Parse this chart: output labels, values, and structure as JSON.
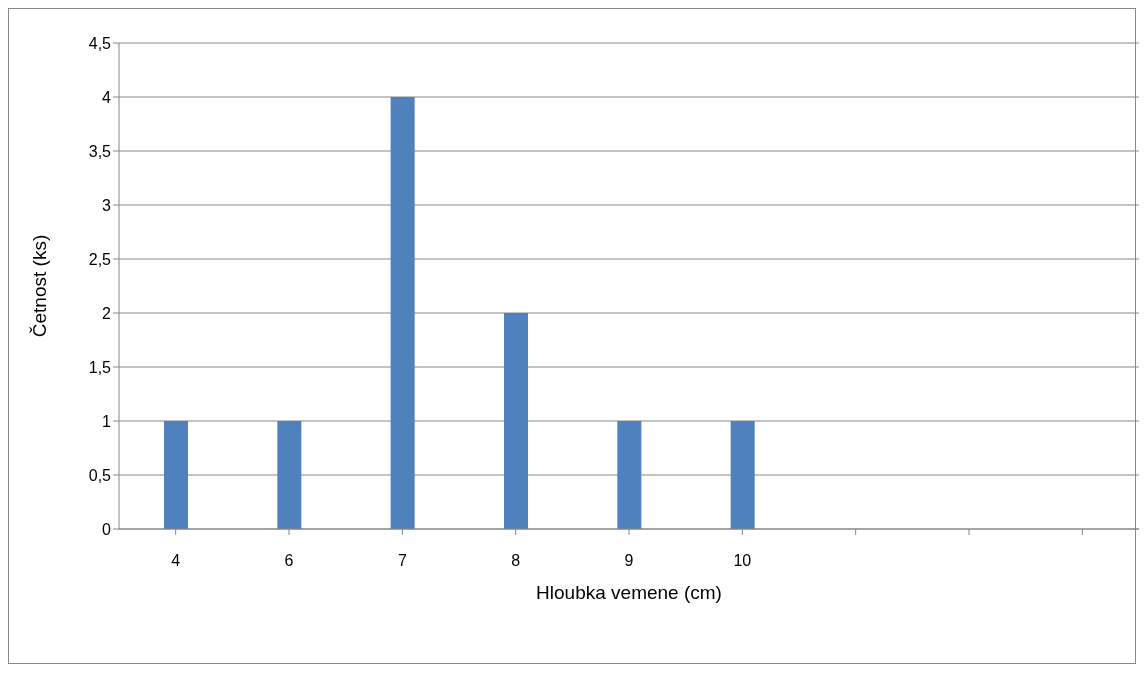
{
  "chart_data": {
    "type": "bar",
    "xlabel": "Hloubka vemene (cm)",
    "ylabel": "Četnost (ks)",
    "categories": [
      "4",
      "6",
      "7",
      "8",
      "9",
      "10",
      null,
      null,
      null
    ],
    "values": [
      1,
      1,
      4,
      2,
      1,
      1,
      null,
      null,
      null
    ],
    "color": "#4f81bd",
    "ylim": [
      0,
      4.5
    ],
    "yticks": [
      0,
      {
        "value": 0.5,
        "label": "0,5"
      },
      1,
      {
        "value": 1.5,
        "label": "1,5"
      },
      2,
      {
        "value": 2.5,
        "label": "2,5"
      },
      3,
      {
        "value": 3.5,
        "label": "3,5"
      },
      4,
      {
        "value": 4.5,
        "label": "4,5"
      }
    ],
    "grid": "y"
  }
}
